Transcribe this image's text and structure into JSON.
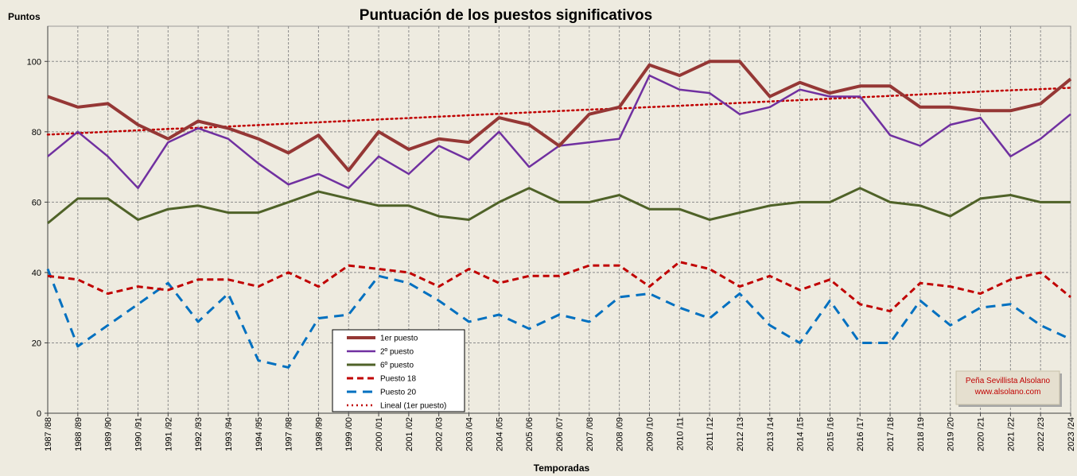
{
  "chart_data": {
    "type": "line",
    "title": "Puntuación de los puestos significativos",
    "ylabel": "Puntos",
    "xlabel": "Temporadas",
    "ylim": [
      0,
      110
    ],
    "yticks": [
      0,
      20,
      40,
      60,
      80,
      100
    ],
    "grid": true,
    "legend_position": "bottom-left",
    "categories": [
      "1987 /88",
      "1988 /89",
      "1989 /90",
      "1990 /91",
      "1991 /92",
      "1992 /93",
      "1993 /94",
      "1994 /95",
      "1997 /98",
      "1998 /99",
      "1999 /00",
      "2000 /01",
      "2001 /02",
      "2002 /03",
      "2003 /04",
      "2004 /05",
      "2005 /06",
      "2006 /07",
      "2007 /08",
      "2008 /09",
      "2009 /10",
      "2010 /11",
      "2011 /12",
      "2012 /13",
      "2013 /14",
      "2014 /15",
      "2015 /16",
      "2016 /17",
      "2017 /18",
      "2018 /19",
      "2019 /20",
      "2020 /21",
      "2021 /22",
      "2022 /23",
      "2023 /24"
    ],
    "series": [
      {
        "name": "1er puesto",
        "color": "#953735",
        "dash": "solid",
        "width": 4,
        "values": [
          90,
          87,
          88,
          82,
          78,
          83,
          81,
          78,
          74,
          79,
          69,
          80,
          75,
          78,
          77,
          84,
          82,
          76,
          85,
          87,
          99,
          96,
          100,
          100,
          90,
          94,
          91,
          93,
          93,
          87,
          87,
          86,
          86,
          88,
          95
        ]
      },
      {
        "name": "2º puesto",
        "color": "#7030a0",
        "dash": "solid",
        "width": 2.5,
        "values": [
          73,
          80,
          73,
          64,
          77,
          81,
          78,
          71,
          65,
          68,
          64,
          73,
          68,
          76,
          72,
          80,
          70,
          76,
          77,
          78,
          96,
          92,
          91,
          85,
          87,
          92,
          90,
          90,
          79,
          76,
          82,
          84,
          73,
          78,
          85
        ]
      },
      {
        "name": "6º puesto",
        "color": "#4f6228",
        "dash": "solid",
        "width": 3,
        "values": [
          54,
          61,
          61,
          55,
          58,
          59,
          57,
          57,
          60,
          63,
          61,
          59,
          59,
          56,
          55,
          60,
          64,
          60,
          60,
          62,
          58,
          58,
          55,
          57,
          59,
          60,
          60,
          64,
          60,
          59,
          56,
          61,
          62,
          60,
          60
        ]
      },
      {
        "name": "Puesto 18",
        "color": "#c00000",
        "dash": "dashed",
        "width": 3,
        "values": [
          39,
          38,
          34,
          36,
          35,
          38,
          38,
          36,
          40,
          36,
          42,
          41,
          40,
          36,
          41,
          37,
          39,
          39,
          42,
          42,
          36,
          43,
          41,
          36,
          39,
          35,
          38,
          31,
          29,
          37,
          36,
          34,
          38,
          40,
          33
        ]
      },
      {
        "name": "Puesto 20",
        "color": "#0070c0",
        "dash": "longdash",
        "width": 3,
        "values": [
          41,
          19,
          25,
          31,
          37,
          26,
          34,
          15,
          13,
          27,
          28,
          39,
          37,
          32,
          26,
          28,
          24,
          28,
          26,
          33,
          34,
          30,
          27,
          34,
          25,
          20,
          32,
          20,
          20,
          32,
          25,
          30,
          31,
          25,
          21
        ]
      },
      {
        "name": "Lineal (1er puesto)",
        "color": "#c00000",
        "dash": "dotted",
        "width": 2.5,
        "values": [
          79.2,
          79.6,
          80.0,
          80.4,
          80.8,
          81.1,
          81.5,
          81.9,
          82.3,
          82.7,
          83.1,
          83.5,
          83.9,
          84.3,
          84.7,
          85.1,
          85.5,
          85.9,
          86.3,
          86.6,
          87.0,
          87.4,
          87.8,
          88.2,
          88.6,
          89.0,
          89.4,
          89.8,
          90.2,
          90.6,
          91.0,
          91.4,
          91.8,
          92.1,
          92.5
        ]
      }
    ],
    "credit": {
      "line1": "Peña Sevillista Alsolano",
      "line2": "www.alsolano.com"
    }
  }
}
